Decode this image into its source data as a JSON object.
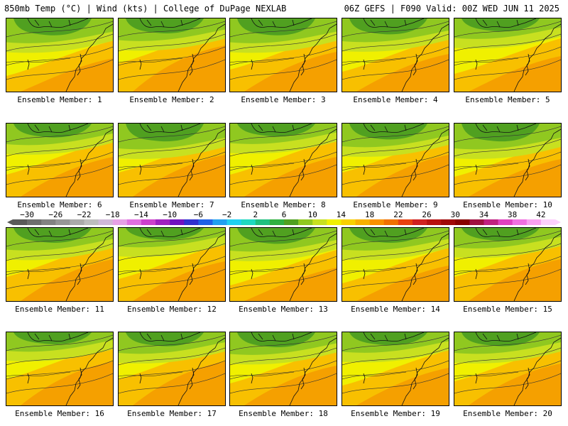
{
  "header": {
    "left": "850mb Temp (°C) | Wind (kts) | College of DuPage NEXLAB",
    "right": "06Z GEFS | F090 Valid: 00Z WED JUN 11 2025"
  },
  "panel_label_prefix": "Ensemble Member:",
  "members": [
    1,
    2,
    3,
    4,
    5,
    6,
    7,
    8,
    9,
    10,
    11,
    12,
    13,
    14,
    15,
    16,
    17,
    18,
    19,
    20
  ],
  "colorbar": {
    "ticks": [
      "-30",
      "-26",
      "-22",
      "-18",
      "-14",
      "-10",
      "-6",
      "-2",
      "2",
      "6",
      "10",
      "14",
      "18",
      "22",
      "26",
      "30",
      "34",
      "38",
      "42"
    ],
    "min": -32,
    "max": 44,
    "colors": [
      "#5a5a5a",
      "#6e6e6e",
      "#828282",
      "#969696",
      "#aaaaaa",
      "#bdbdbd",
      "#d0b8d8",
      "#e6a0e6",
      "#e070e0",
      "#cc40cc",
      "#a020c0",
      "#7010c0",
      "#3030d0",
      "#2060e8",
      "#20a0f0",
      "#20d0f0",
      "#20d8c0",
      "#20c080",
      "#30b040",
      "#50a020",
      "#90c820",
      "#c8e020",
      "#f0f000",
      "#f8d000",
      "#f8b000",
      "#f89000",
      "#f07000",
      "#e84010",
      "#d02020",
      "#b81010",
      "#a00808",
      "#880000",
      "#a01040",
      "#c02080",
      "#e040c0",
      "#f070e0",
      "#f8a0f0",
      "#fcd0fc"
    ],
    "colors_note_ignored": ""
  },
  "map_colors": {
    "cold": "#50a020",
    "cool": "#90c820",
    "mild": "#c8e020",
    "warm": "#f0f000",
    "hot": "#f8c000",
    "hotter": "#f5a000"
  }
}
